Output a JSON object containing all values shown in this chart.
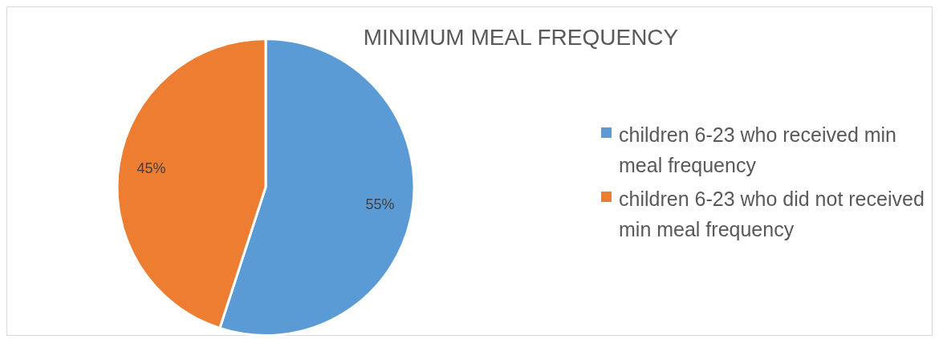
{
  "chart_data": {
    "type": "pie",
    "title": "MINIMUM MEAL FREQUENCY",
    "categories": [
      "children 6-23 who received min meal frequency",
      "children 6-23 who did not received min meal frequency"
    ],
    "values": [
      55,
      45
    ],
    "colors": [
      "#5b9bd5",
      "#ed7d31"
    ],
    "value_labels": [
      "55%",
      "45%"
    ],
    "legend": "right"
  }
}
